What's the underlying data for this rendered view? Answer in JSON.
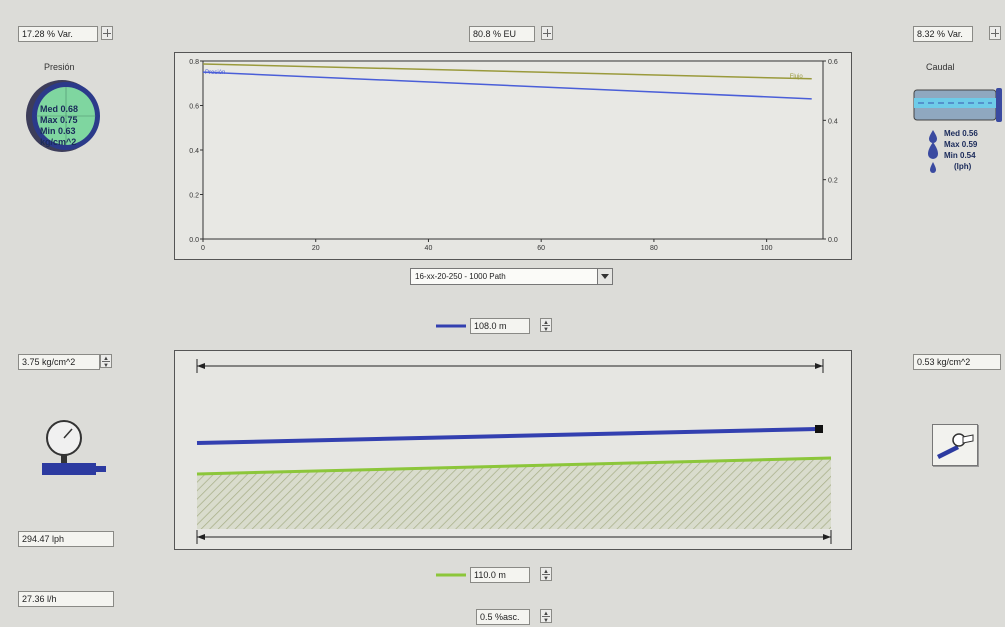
{
  "top": {
    "left_field": "17.28 % Var.",
    "center_field": "80.8 % EU",
    "right_field": "8.32 % Var."
  },
  "pressure": {
    "title": "Presión",
    "gauge_lines": [
      "Med 0.68",
      "Max 0.75",
      "Min 0.63",
      "kg/cm^2"
    ]
  },
  "flow": {
    "title": "Caudal",
    "lines": [
      "Med 0.56",
      "Max 0.59",
      "Min 0.54",
      "(lph)"
    ]
  },
  "chart_data": {
    "type": "line",
    "title": "",
    "xlabel": "",
    "ylabel": "",
    "x_ticks": [
      0,
      20,
      40,
      60,
      80,
      100
    ],
    "y_left_ticks": [
      "0.0",
      "0.2",
      "0.4",
      "0.6",
      "0.8"
    ],
    "y_right_ticks": [
      "0.0",
      "0.2",
      "0.4",
      "0.6"
    ],
    "xlim": [
      0,
      110
    ],
    "ylim_left": [
      0,
      0.8
    ],
    "ylim_right": [
      0,
      0.6
    ],
    "grid": false,
    "series": [
      {
        "name": "Presión",
        "axis": "left",
        "color": "#4a5ed8",
        "x": [
          0,
          108
        ],
        "y": [
          0.75,
          0.63
        ]
      },
      {
        "name": "Flujo",
        "axis": "right",
        "color": "#9a9a3c",
        "x": [
          0,
          108
        ],
        "y": [
          0.59,
          0.54
        ]
      }
    ]
  },
  "path_select": {
    "value": "16-xx-20-250 - 1000 Path"
  },
  "profile": {
    "top_length": "108.0 m",
    "bottom_length": "110.0 m",
    "slope": "0.5 %asc."
  },
  "left_panel": {
    "pressure_in": "3.75 kg/cm^2",
    "flow_total": "294.47 lph",
    "rate": "27.36 l/h"
  },
  "right_panel": {
    "pressure_out": "0.53 kg/cm^2"
  },
  "colors": {
    "pressure_line": "#3340b0",
    "terrain_line": "#8cc63a",
    "gauge_face": "#7fd6a0",
    "gauge_ring": "#2b3a8a"
  }
}
